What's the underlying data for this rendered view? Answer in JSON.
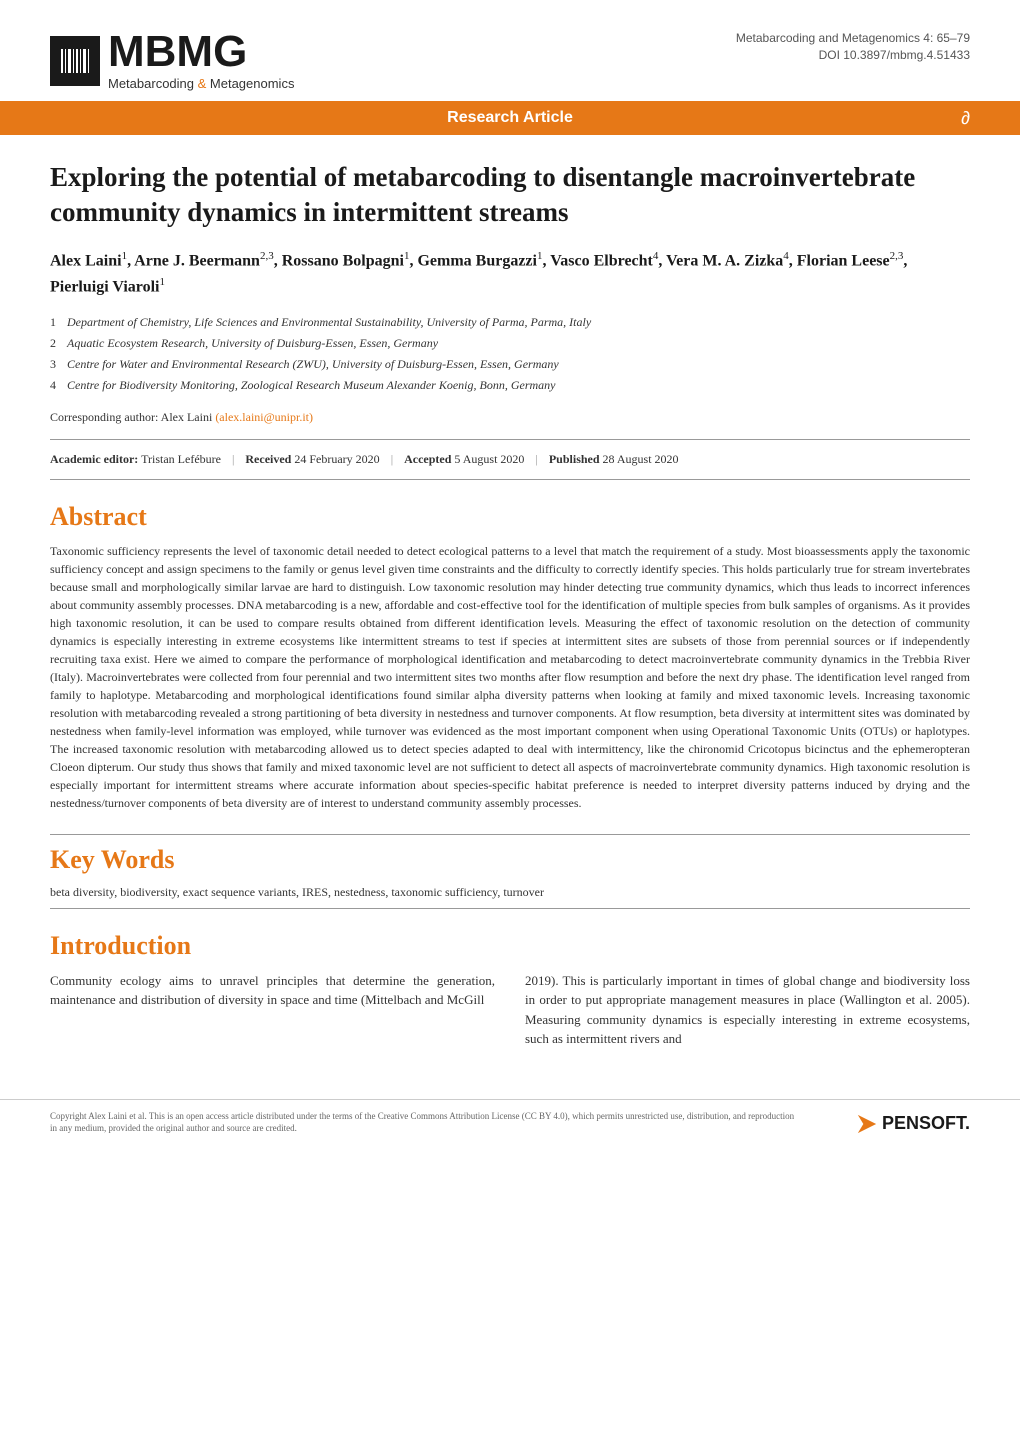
{
  "header": {
    "logo_main": "MBMG",
    "logo_sub_pre": "Metabarcoding ",
    "logo_sub_amp": "&",
    "logo_sub_post": " Metagenomics",
    "journal_line": "Metabarcoding and Metagenomics 4: 65–79",
    "doi_line": "DOI 10.3897/mbmg.4.51433"
  },
  "banner": {
    "label": "Research Article",
    "open_access_icon": "∂"
  },
  "article": {
    "title": "Exploring the potential of metabarcoding to disentangle macroinvertebrate community dynamics in intermittent streams",
    "authors_html": "Alex Laini<sup>1</sup>, Arne J. Beermann<sup>2,3</sup>, Rossano Bolpagni<sup>1</sup>, Gemma Burgazzi<sup>1</sup>, Vasco Elbrecht<sup>4</sup>, Vera M. A. Zizka<sup>4</sup>, Florian Leese<sup>2,3</sup>, Pierluigi Viaroli<sup>1</sup>",
    "affiliations": [
      {
        "num": "1",
        "text": "Department of Chemistry, Life Sciences and Environmental Sustainability, University of Parma, Parma, Italy"
      },
      {
        "num": "2",
        "text": "Aquatic Ecosystem Research, University of Duisburg-Essen, Essen, Germany"
      },
      {
        "num": "3",
        "text": "Centre for Water and Environmental Research (ZWU), University of Duisburg-Essen, Essen, Germany"
      },
      {
        "num": "4",
        "text": "Centre for Biodiversity Monitoring, Zoological Research Museum Alexander Koenig, Bonn, Germany"
      }
    ],
    "corresponding_label": "Corresponding author: Alex Laini ",
    "corresponding_email": "(alex.laini@unipr.it)",
    "editorial": {
      "editor_label": "Academic editor:",
      "editor_name": " Tristan Lefébure",
      "received_label": "Received",
      "received_date": " 24 February 2020",
      "accepted_label": "Accepted",
      "accepted_date": " 5 August 2020",
      "published_label": "Published",
      "published_date": " 28 August 2020"
    }
  },
  "sections": {
    "abstract_heading": "Abstract",
    "abstract_text": "Taxonomic sufficiency represents the level of taxonomic detail needed to detect ecological patterns to a level that match the requirement of a study. Most bioassessments apply the taxonomic sufficiency concept and assign specimens to the family or genus level given time constraints and the difficulty to correctly identify species. This holds particularly true for stream invertebrates because small and morphologically similar larvae are hard to distinguish. Low taxonomic resolution may hinder detecting true community dynamics, which thus leads to incorrect inferences about community assembly processes. DNA metabarcoding is a new, affordable and cost-effective tool for the identification of multiple species from bulk samples of organisms. As it provides high taxonomic resolution, it can be used to compare results obtained from different identification levels. Measuring the effect of taxonomic resolution on the detection of community dynamics is especially interesting in extreme ecosystems like intermittent streams to test if species at intermittent sites are subsets of those from perennial sources or if independently recruiting taxa exist. Here we aimed to compare the performance of morphological identification and metabarcoding to detect macroinvertebrate community dynamics in the Trebbia River (Italy). Macroinvertebrates were collected from four perennial and two intermittent sites two months after flow resumption and before the next dry phase. The identification level ranged from family to haplotype. Metabarcoding and morphological identifications found similar alpha diversity patterns when looking at family and mixed taxonomic levels. Increasing taxonomic resolution with metabarcoding revealed a strong partitioning of beta diversity in nestedness and turnover components. At flow resumption, beta diversity at intermittent sites was dominated by nestedness when family-level information was employed, while turnover was evidenced as the most important component when using Operational Taxonomic Units (OTUs) or haplotypes. The increased taxonomic resolution with metabarcoding allowed us to detect species adapted to deal with intermittency, like the chironomid Cricotopus bicinctus and the ephemeropteran Cloeon dipterum. Our study thus shows that family and mixed taxonomic level are not sufficient to detect all aspects of macroinvertebrate community dynamics. High taxonomic resolution is especially important for intermittent streams where accurate information about species-specific habitat preference is needed to interpret diversity patterns induced by drying and the nestedness/turnover components of beta diversity are of interest to understand community assembly processes.",
    "keywords_heading": "Key Words",
    "keywords_text": "beta diversity, biodiversity, exact sequence variants, IRES, nestedness, taxonomic sufficiency, turnover",
    "introduction_heading": "Introduction",
    "introduction_col1": "Community ecology aims to unravel principles that determine the generation, maintenance and distribution of diversity in space and time (Mittelbach and McGill",
    "introduction_col2": "2019). This is particularly important in times of global change and biodiversity loss in order to put appropriate management measures in place (Wallington et al. 2005). Measuring community dynamics is especially interesting in extreme ecosystems, such as intermittent rivers and"
  },
  "footer": {
    "copyright": "Copyright Alex Laini et al. This is an open access article distributed under the terms of the Creative Commons Attribution License (CC BY 4.0), which permits unrestricted use, distribution, and reproduction in any medium, provided the original author and source are credited.",
    "publisher": "PENSOFT."
  },
  "colors": {
    "accent": "#e67817",
    "text": "#333333",
    "heading": "#1a1a1a",
    "background": "#ffffff",
    "divider": "#999999"
  }
}
